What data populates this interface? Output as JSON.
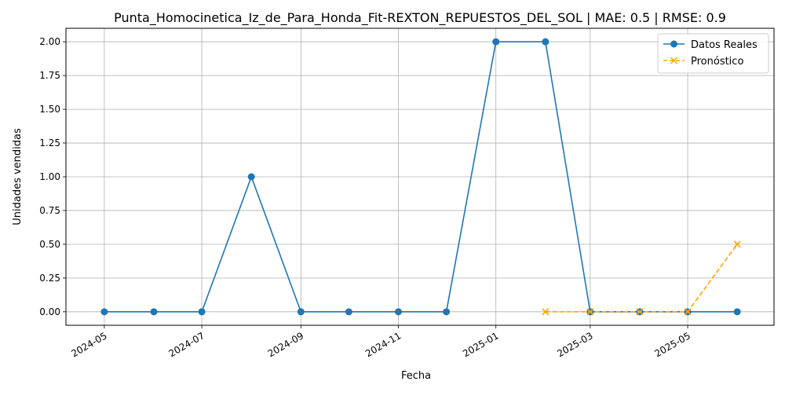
{
  "chart_data": {
    "type": "line",
    "title": "Punta_Homocinetica_Iz_de_Para_Honda_Fit-REXTON_REPUESTOS_DEL_SOL | MAE: 0.5 | RMSE: 0.9",
    "xlabel": "Fecha",
    "ylabel": "Unidades vendidas",
    "ylim": [
      -0.1,
      2.1
    ],
    "xlim": [
      "2024-04-07",
      "2025-06-24"
    ],
    "grid": true,
    "legend_position": "top-right",
    "x_ticks": [
      "2024-05",
      "2024-07",
      "2024-09",
      "2024-11",
      "2025-01",
      "2025-03",
      "2025-05"
    ],
    "y_ticks": [
      "0.00",
      "0.25",
      "0.50",
      "0.75",
      "1.00",
      "1.25",
      "1.50",
      "1.75",
      "2.00"
    ],
    "series": [
      {
        "name": "Datos Reales",
        "color": "#1f77b4",
        "style": "solid",
        "marker": "circle",
        "x": [
          "2024-05-01",
          "2024-06-01",
          "2024-07-01",
          "2024-08-01",
          "2024-09-01",
          "2024-10-01",
          "2024-11-01",
          "2024-12-01",
          "2025-01-01",
          "2025-02-01",
          "2025-03-01",
          "2025-04-01",
          "2025-05-01",
          "2025-06-01"
        ],
        "y": [
          0,
          0,
          0,
          1,
          0,
          0,
          0,
          0,
          2,
          2,
          0,
          0,
          0,
          0
        ]
      },
      {
        "name": "Pronóstico",
        "color": "#ffa500",
        "style": "dashed",
        "marker": "x",
        "x": [
          "2025-02-01",
          "2025-03-01",
          "2025-04-01",
          "2025-05-01",
          "2025-06-01"
        ],
        "y": [
          0,
          0,
          0,
          0,
          0.5
        ]
      }
    ]
  }
}
